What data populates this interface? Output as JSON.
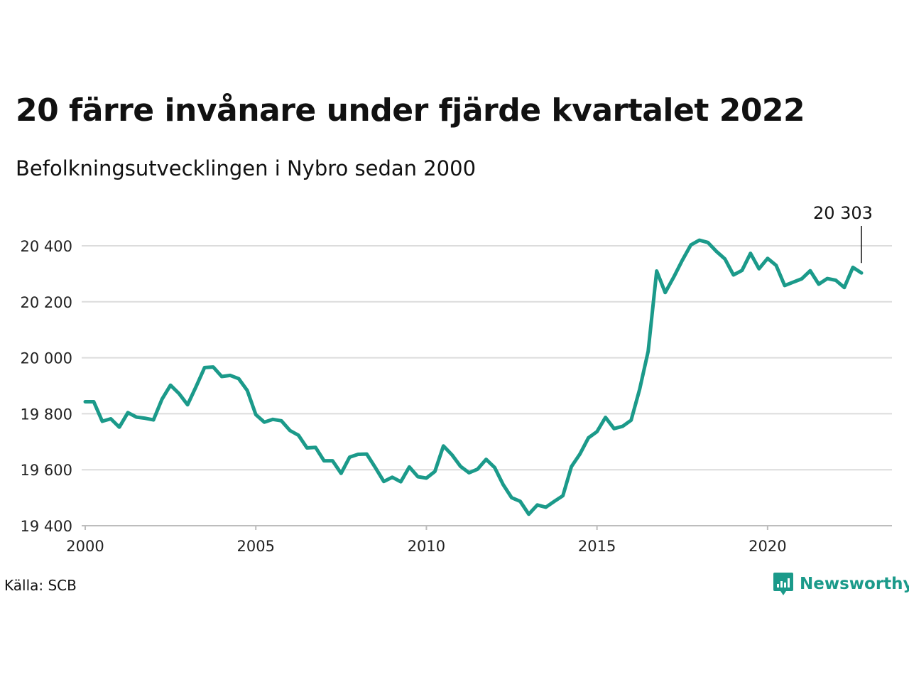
{
  "title": "20 färre invånare under fjärde kvartalet 2022",
  "subtitle": "Befolkningsutvecklingen i Nybro sedan 2000",
  "source": "Källa: SCB",
  "brand": {
    "name": "Newsworthy",
    "logo_icon": "newsworthy-logo-icon",
    "color": "#1b9a8a"
  },
  "chart_data": {
    "type": "line",
    "title": "20 färre invånare under fjärde kvartalet 2022",
    "subtitle": "Befolkningsutvecklingen i Nybro sedan 2000",
    "xlabel": "",
    "ylabel": "",
    "xlim": [
      2000,
      2023.5
    ],
    "ylim": [
      19400,
      20400
    ],
    "x_ticks": [
      2000,
      2005,
      2010,
      2015,
      2020
    ],
    "x_tick_labels": [
      "2000",
      "2005",
      "2010",
      "2015",
      "2020"
    ],
    "y_ticks": [
      19400,
      19600,
      19800,
      20000,
      20200,
      20400
    ],
    "y_tick_labels": [
      "19 400",
      "19 600",
      "19 800",
      "20 000",
      "20 200",
      "20 400"
    ],
    "grid": "horizontal",
    "line_color": "#1b9a8a",
    "end_label": "20 303",
    "series": [
      {
        "x": [
          2000.0,
          2000.25,
          2000.5,
          2000.75,
          2001.0,
          2001.25,
          2001.5,
          2001.75,
          2002.0,
          2002.25,
          2002.5,
          2002.75,
          2003.0,
          2003.25,
          2003.5,
          2003.75,
          2004.0,
          2004.25,
          2004.5,
          2004.75,
          2005.0,
          2005.25,
          2005.5,
          2005.75,
          2006.0,
          2006.25,
          2006.5,
          2006.75,
          2007.0,
          2007.25,
          2007.5,
          2007.75,
          2008.0,
          2008.25,
          2008.5,
          2008.75,
          2009.0,
          2009.25,
          2009.5,
          2009.75,
          2010.0,
          2010.25,
          2010.5,
          2010.75,
          2011.0,
          2011.25,
          2011.5,
          2011.75,
          2012.0,
          2012.25,
          2012.5,
          2012.75,
          2013.0,
          2013.25,
          2013.5,
          2013.75,
          2014.0,
          2014.25,
          2014.5,
          2014.75,
          2015.0,
          2015.25,
          2015.5,
          2015.75,
          2016.0,
          2016.25,
          2016.5,
          2016.75,
          2017.0,
          2017.25,
          2017.5,
          2017.75,
          2018.0,
          2018.25,
          2018.5,
          2018.75,
          2019.0,
          2019.25,
          2019.5,
          2019.75,
          2020.0,
          2020.25,
          2020.5,
          2020.75,
          2021.0,
          2021.25,
          2021.5,
          2021.75,
          2022.0,
          2022.25,
          2022.5,
          2022.75
        ],
        "y": [
          19843,
          19843,
          19773,
          19782,
          19752,
          19804,
          19788,
          19784,
          19778,
          19852,
          19902,
          19872,
          19832,
          19897,
          19965,
          19967,
          19933,
          19937,
          19925,
          19883,
          19797,
          19770,
          19780,
          19775,
          19740,
          19723,
          19678,
          19680,
          19632,
          19632,
          19587,
          19645,
          19655,
          19656,
          19608,
          19558,
          19573,
          19557,
          19610,
          19575,
          19570,
          19594,
          19685,
          19653,
          19612,
          19589,
          19602,
          19637,
          19608,
          19547,
          19500,
          19487,
          19441,
          19474,
          19466,
          19487,
          19507,
          19611,
          19656,
          19714,
          19736,
          19787,
          19747,
          19755,
          19777,
          19887,
          20023,
          20310,
          20233,
          20288,
          20348,
          20403,
          20420,
          20412,
          20380,
          20353,
          20296,
          20312,
          20373,
          20318,
          20355,
          20330,
          20258,
          20270,
          20282,
          20311,
          20263,
          20283,
          20277,
          20251,
          20323,
          20303
        ]
      }
    ]
  }
}
